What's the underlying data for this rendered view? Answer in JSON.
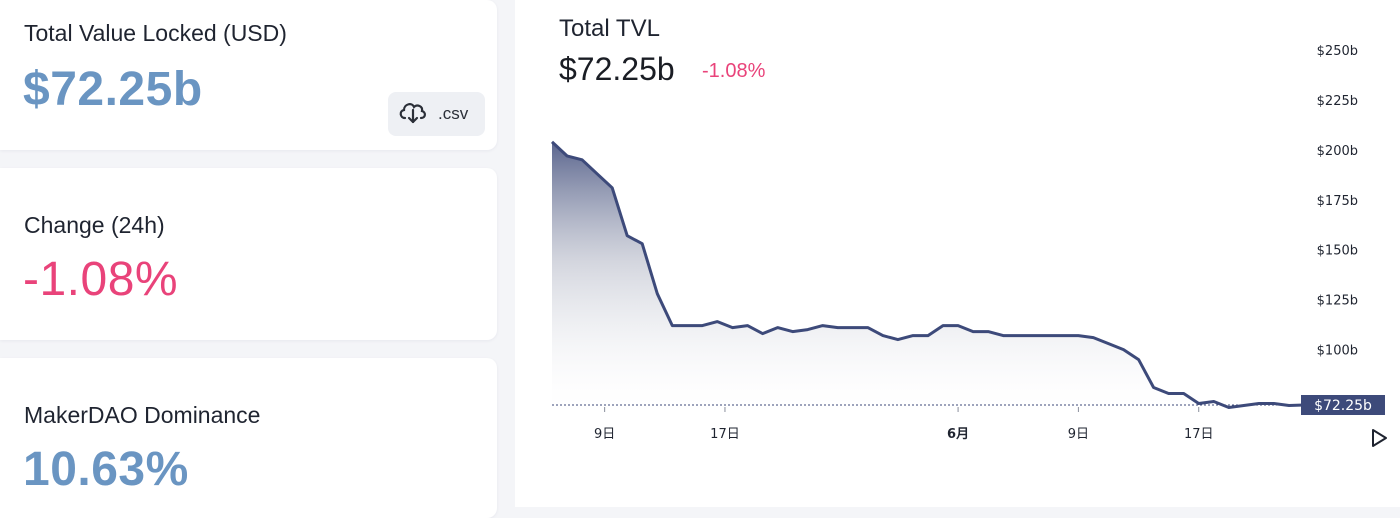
{
  "cards": {
    "tvl": {
      "label": "Total Value Locked (USD)",
      "value": "$72.25b",
      "value_color": "#6a95c2"
    },
    "csv": {
      "label": ".csv",
      "icon": "cloud-download-icon"
    },
    "change": {
      "label": "Change (24h)",
      "value": "-1.08%",
      "value_color": "#e9437a"
    },
    "dominance": {
      "label": "MakerDAO Dominance",
      "value": "10.63%",
      "value_color": "#6a95c2"
    }
  },
  "chart": {
    "title": "Total TVL",
    "value": "$72.25b",
    "change": "-1.08%",
    "current_label": "$72.25b",
    "line_color": "#3d4a7a",
    "play_icon": "play-icon"
  },
  "chart_data": {
    "type": "area",
    "title": "Total TVL",
    "y_ticks": [
      "$250b",
      "$225b",
      "$200b",
      "$175b",
      "$150b",
      "$125b",
      "$100b"
    ],
    "ylim": [
      72.25,
      250
    ],
    "x_ticks": [
      {
        "label": "9日",
        "x": 3.5,
        "bold": false
      },
      {
        "label": "17日",
        "x": 11.5,
        "bold": false
      },
      {
        "label": "6月",
        "x": 27,
        "bold": true
      },
      {
        "label": "9日",
        "x": 35,
        "bold": false
      },
      {
        "label": "17日",
        "x": 43,
        "bold": false
      }
    ],
    "series": [
      {
        "x": [
          0,
          1,
          2,
          3,
          4,
          5,
          6,
          7,
          8,
          9,
          10,
          11,
          12,
          13,
          14,
          15,
          16,
          17,
          18,
          19,
          20,
          21,
          22,
          23,
          24,
          25,
          26,
          27,
          28,
          29,
          30,
          31,
          32,
          33,
          34,
          35,
          36,
          37,
          38,
          39,
          40,
          41,
          42,
          43,
          44,
          45,
          46,
          47,
          48,
          49,
          50
        ],
        "values": [
          204,
          197,
          195,
          188,
          181,
          157,
          153,
          128,
          112,
          112,
          112,
          114,
          111,
          112,
          108,
          111,
          109,
          110,
          112,
          111,
          111,
          111,
          107,
          105,
          107,
          107,
          112,
          112,
          109,
          109,
          107,
          107,
          107,
          107,
          107,
          107,
          106,
          103,
          100,
          95,
          81,
          78,
          78,
          73,
          74,
          71,
          72,
          73,
          73,
          72,
          72.25
        ]
      }
    ]
  }
}
